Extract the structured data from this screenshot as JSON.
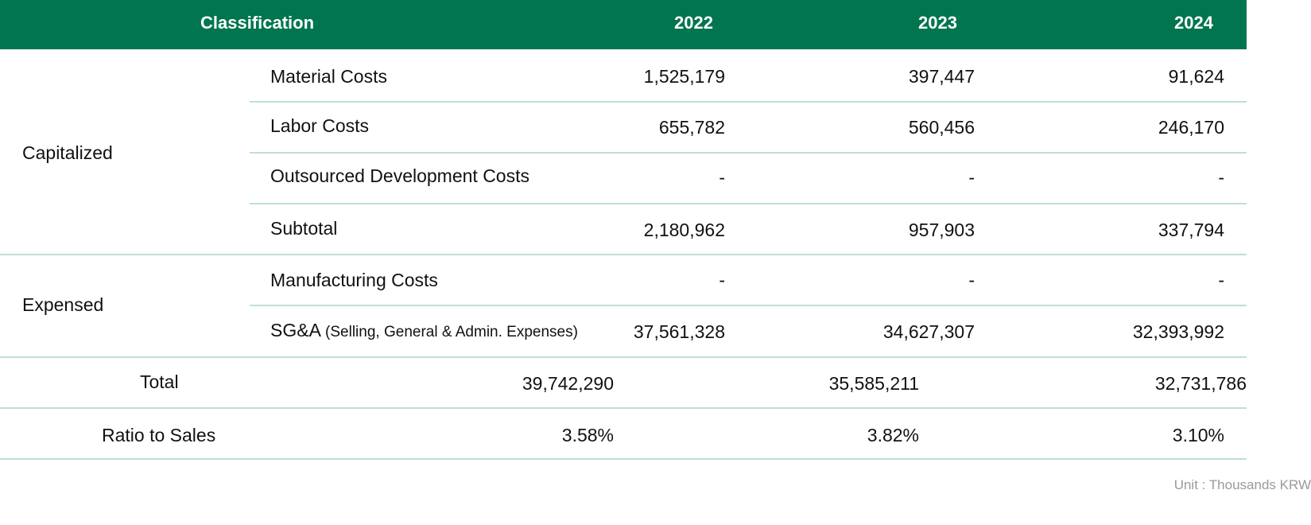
{
  "header": {
    "classification": "Classification",
    "years": [
      "2022",
      "2023",
      "2024"
    ]
  },
  "groups": {
    "capitalized": "Capitalized",
    "expensed": "Expensed"
  },
  "rows": [
    {
      "label": "Material Costs",
      "values": [
        "1,525,179",
        "397,447",
        "91,624"
      ]
    },
    {
      "label": "Labor Costs",
      "values": [
        "655,782",
        "560,456",
        "246,170"
      ]
    },
    {
      "label": "Outsourced Development Costs",
      "values": [
        "-",
        "-",
        "-"
      ]
    },
    {
      "label": "Subtotal",
      "values": [
        "2,180,962",
        "957,903",
        "337,794"
      ]
    },
    {
      "label": "Manufacturing Costs",
      "values": [
        "-",
        "-",
        "-"
      ]
    },
    {
      "label": "SG&A",
      "label_note": "(Selling, General & Admin. Expenses)",
      "values": [
        "37,561,328",
        "34,627,307",
        "32,393,992"
      ]
    }
  ],
  "total": {
    "label": "Total",
    "values": [
      "39,742,290",
      "35,585,211",
      "32,731,786"
    ]
  },
  "ratio": {
    "label": "Ratio to Sales",
    "values": [
      "3.58%",
      "3.82%",
      "3.10%"
    ]
  },
  "unit": "Unit : Thousands KRW"
}
